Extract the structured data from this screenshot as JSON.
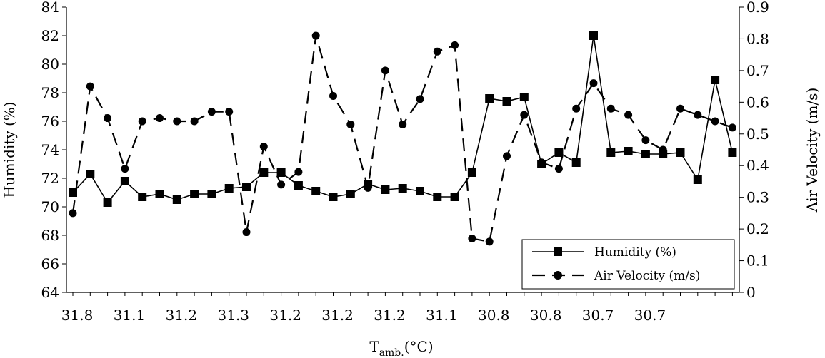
{
  "chart_data": {
    "type": "line",
    "xlabel": "T",
    "xlabel_subscript": "amb.",
    "xlabel_unit": "(°C)",
    "ylabel_left": "Humidity (%)",
    "ylabel_right": "Air Velocity (m/s)",
    "ylim_left": [
      64,
      84
    ],
    "ylim_right": [
      0,
      0.9
    ],
    "yticks_left": [
      "64",
      "66",
      "68",
      "70",
      "72",
      "74",
      "76",
      "78",
      "80",
      "82",
      "84"
    ],
    "yticks_right": [
      "0",
      "0.1",
      "0.2",
      "0.3",
      "0.4",
      "0.5",
      "0.6",
      "0.7",
      "0.8",
      "0.9"
    ],
    "xtick_labels": [
      "31.8",
      "31.1",
      "31.2",
      "31.3",
      "31.2",
      "31.2",
      "31.2",
      "31.1",
      "30.8",
      "30.8",
      "30.7",
      "30.7"
    ],
    "legend_position": "bottom-right",
    "colors": {
      "line": "#000000"
    },
    "series": [
      {
        "name": "Humidity (%)",
        "axis": "left",
        "marker": "square",
        "dash": "solid",
        "values": [
          71.0,
          72.3,
          70.3,
          71.8,
          70.7,
          70.9,
          70.5,
          70.9,
          70.9,
          71.3,
          71.4,
          72.4,
          72.4,
          71.5,
          71.1,
          70.7,
          70.9,
          71.6,
          71.2,
          71.3,
          71.1,
          70.7,
          70.7,
          72.4,
          77.6,
          77.4,
          77.7,
          73.0,
          73.8,
          73.1,
          82.0,
          73.8,
          73.9,
          73.7,
          73.7,
          73.8,
          71.9,
          78.9,
          73.8
        ]
      },
      {
        "name": "Air Velocity (m/s)",
        "axis": "right",
        "marker": "circle",
        "dash": "dashed",
        "values": [
          0.25,
          0.65,
          0.55,
          0.39,
          0.54,
          0.55,
          0.54,
          0.54,
          0.57,
          0.57,
          0.19,
          0.46,
          0.34,
          0.38,
          0.81,
          0.62,
          0.53,
          0.33,
          0.7,
          0.53,
          0.61,
          0.76,
          0.78,
          0.17,
          0.16,
          0.43,
          0.56,
          0.41,
          0.39,
          0.58,
          0.66,
          0.58,
          0.56,
          0.48,
          0.45,
          0.58,
          0.56,
          0.54,
          0.52
        ]
      }
    ]
  }
}
